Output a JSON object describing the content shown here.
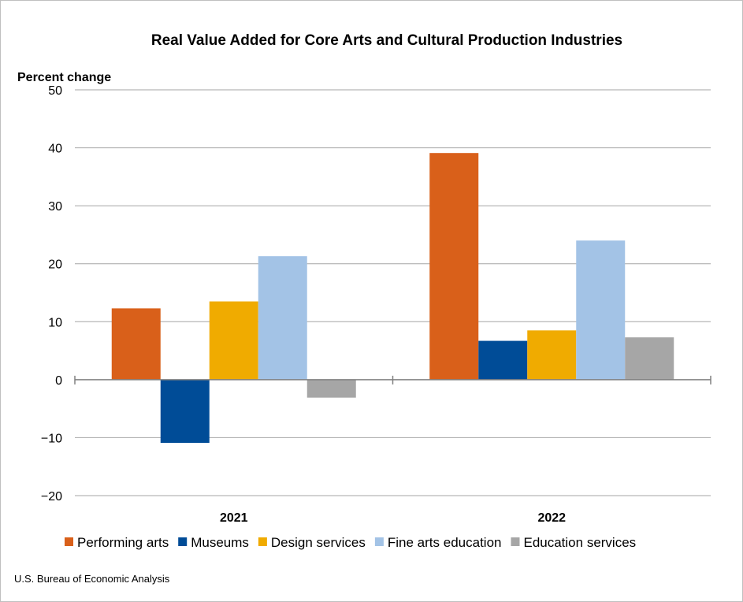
{
  "chart_data": {
    "type": "bar",
    "title": "Real Value Added for Core Arts and Cultural Production Industries",
    "ylabel": "Percent change",
    "xlabel": "",
    "categories": [
      "2021",
      "2022"
    ],
    "ylim": [
      -20,
      50
    ],
    "yticks": [
      50,
      40,
      30,
      20,
      10,
      0,
      -10,
      -20
    ],
    "ytick_labels": [
      "50",
      "40",
      "30",
      "20",
      "10",
      "0",
      "−10",
      "−20"
    ],
    "grid": true,
    "legend_position": "bottom",
    "series": [
      {
        "name": "Performing arts",
        "color": "#D9601A",
        "values": [
          12.3,
          39.1
        ]
      },
      {
        "name": "Museums",
        "color": "#004C97",
        "values": [
          -10.9,
          6.7
        ]
      },
      {
        "name": "Design services",
        "color": "#F0AB00",
        "values": [
          13.5,
          8.5
        ]
      },
      {
        "name": "Fine arts education",
        "color": "#A3C3E6",
        "values": [
          21.3,
          24.0
        ]
      },
      {
        "name": "Education services",
        "color": "#A6A6A6",
        "values": [
          -3.1,
          7.3
        ]
      }
    ]
  },
  "source": "U.S. Bureau of Economic Analysis"
}
